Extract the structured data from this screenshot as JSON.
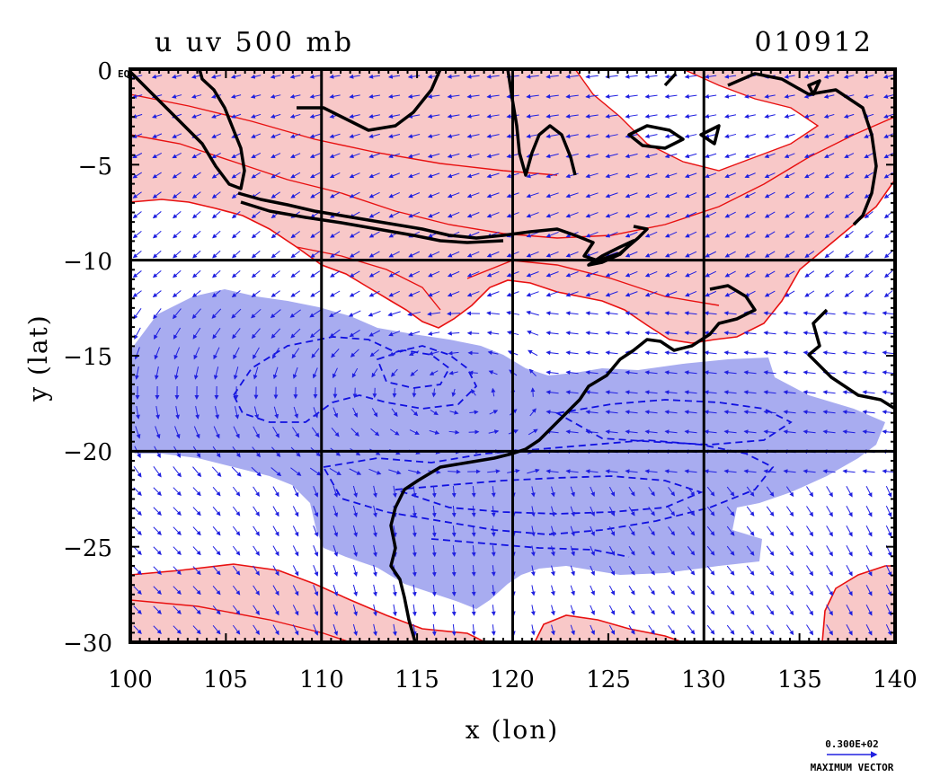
{
  "title": {
    "left": "u uv 500 mb",
    "right": "010912"
  },
  "axes": {
    "x_label": "x (lon)",
    "y_label": "y (lat)",
    "eq_label": "EQ",
    "x_ticks": [
      "100",
      "105",
      "110",
      "115",
      "120",
      "125",
      "130",
      "135",
      "140"
    ],
    "y_ticks": [
      "0",
      "−5",
      "−10",
      "−15",
      "−20",
      "−25",
      "−30"
    ],
    "x_range": [
      100,
      140
    ],
    "y_range": [
      -30,
      0
    ]
  },
  "vector_key": {
    "value": "0.300E+02",
    "label": "MAXIMUM VECTOR"
  },
  "colors": {
    "positive_fill": "#f8c8c8",
    "positive_line": "#e81010",
    "negative_fill": "#a8acf0",
    "negative_line": "#1010e0",
    "vector": "#2020e0",
    "coast": "#000000"
  },
  "grid_lines": {
    "lon": [
      110,
      120,
      130
    ],
    "lat": [
      -10,
      -20
    ]
  }
}
